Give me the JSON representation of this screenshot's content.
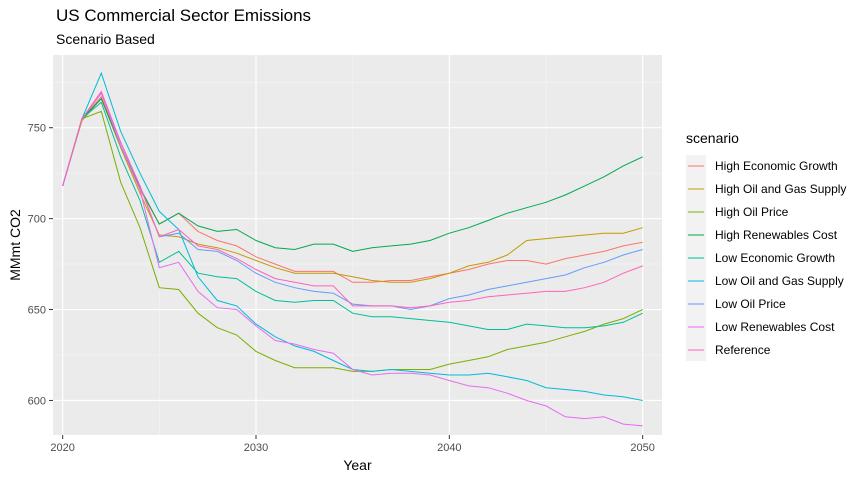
{
  "chart_data": {
    "type": "line",
    "title": "US Commercial Sector Emissions",
    "subtitle": "Scenario Based",
    "xlabel": "Year",
    "ylabel": "MMmt CO2",
    "xlim": [
      2019.5,
      2051
    ],
    "ylim": [
      581,
      790
    ],
    "xticks": [
      2020,
      2030,
      2040,
      2050
    ],
    "yticks": [
      600,
      650,
      700,
      750
    ],
    "grid": true,
    "legend_title": "scenario",
    "legend_position": "right",
    "x": [
      2020,
      2021,
      2022,
      2023,
      2024,
      2025,
      2026,
      2027,
      2028,
      2029,
      2030,
      2031,
      2032,
      2033,
      2034,
      2035,
      2036,
      2037,
      2038,
      2039,
      2040,
      2041,
      2042,
      2043,
      2044,
      2045,
      2046,
      2047,
      2048,
      2049,
      2050
    ],
    "series": [
      {
        "name": "High Economic Growth",
        "color": "#F8766D",
        "values": [
          718,
          755,
          767,
          740,
          716,
          697,
          703,
          693,
          688,
          685,
          679,
          675,
          671,
          671,
          671,
          665,
          665,
          666,
          666,
          668,
          670,
          672,
          675,
          677,
          677,
          675,
          678,
          680,
          682,
          685,
          687
        ]
      },
      {
        "name": "High Oil and Gas Supply",
        "color": "#C49A00",
        "values": [
          718,
          754,
          766,
          739,
          714,
          691,
          690,
          686,
          684,
          681,
          677,
          673,
          670,
          670,
          670,
          668,
          666,
          665,
          665,
          667,
          670,
          674,
          676,
          680,
          688,
          689,
          690,
          691,
          692,
          692,
          695
        ]
      },
      {
        "name": "High Oil Price",
        "color": "#7CAE00",
        "values": [
          718,
          755,
          759,
          720,
          695,
          662,
          661,
          648,
          640,
          636,
          627,
          622,
          618,
          618,
          618,
          616,
          616,
          617,
          617,
          617,
          620,
          622,
          624,
          628,
          630,
          632,
          635,
          638,
          642,
          645,
          650
        ]
      },
      {
        "name": "High Renewables Cost",
        "color": "#00A94F",
        "values": [
          718,
          755,
          766,
          740,
          717,
          697,
          703,
          696,
          693,
          694,
          688,
          684,
          683,
          686,
          686,
          682,
          684,
          685,
          686,
          688,
          692,
          695,
          699,
          703,
          706,
          709,
          713,
          718,
          723,
          729,
          734
        ]
      },
      {
        "name": "Low Economic Growth",
        "color": "#00BF96",
        "values": [
          718,
          755,
          764,
          734,
          710,
          676,
          682,
          670,
          668,
          667,
          660,
          655,
          654,
          655,
          655,
          648,
          646,
          646,
          645,
          644,
          643,
          641,
          639,
          639,
          642,
          641,
          640,
          640,
          641,
          643,
          648
        ]
      },
      {
        "name": "Low Oil and Gas Supply",
        "color": "#00BBDA",
        "values": [
          718,
          755,
          780,
          748,
          725,
          704,
          694,
          668,
          655,
          652,
          642,
          635,
          630,
          627,
          622,
          617,
          616,
          617,
          616,
          615,
          614,
          614,
          615,
          613,
          611,
          607,
          606,
          605,
          603,
          602,
          600
        ]
      },
      {
        "name": "Low Oil Price",
        "color": "#619CFF",
        "values": [
          718,
          755,
          769,
          742,
          718,
          690,
          692,
          683,
          682,
          677,
          670,
          665,
          662,
          660,
          659,
          653,
          652,
          652,
          650,
          652,
          656,
          658,
          661,
          663,
          665,
          667,
          669,
          673,
          676,
          680,
          683
        ]
      },
      {
        "name": "Low Renewables Cost",
        "color": "#E76BF3",
        "values": [
          718,
          755,
          769,
          740,
          716,
          673,
          676,
          660,
          651,
          650,
          641,
          633,
          631,
          628,
          626,
          617,
          614,
          615,
          615,
          614,
          611,
          608,
          607,
          604,
          600,
          597,
          591,
          590,
          591,
          587,
          586
        ]
      },
      {
        "name": "Reference",
        "color": "#FF62BC",
        "values": [
          718,
          755,
          770,
          742,
          718,
          690,
          694,
          685,
          683,
          678,
          672,
          667,
          665,
          663,
          663,
          652,
          652,
          652,
          651,
          652,
          654,
          655,
          657,
          658,
          659,
          660,
          660,
          662,
          665,
          670,
          674
        ]
      }
    ]
  }
}
